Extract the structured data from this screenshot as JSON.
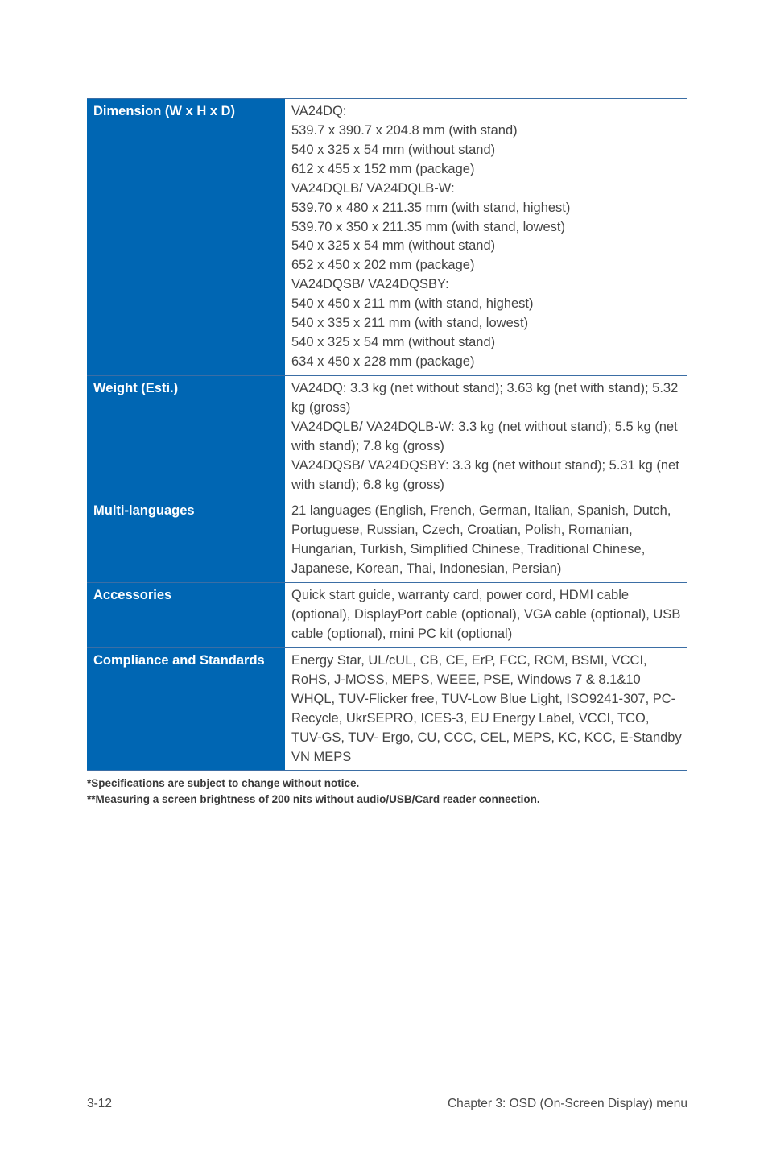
{
  "table": {
    "label_bg": "#0066b3",
    "label_color": "#ffffff",
    "value_color": "#444444",
    "border_color": "#3b6ea5",
    "rows": [
      {
        "label": "Dimension (W x H x D)",
        "value": "VA24DQ:\n539.7 x 390.7 x 204.8 mm (with stand)\n540 x 325 x 54 mm (without stand)\n612 x 455 x 152 mm (package)\nVA24DQLB/ VA24DQLB-W:\n539.70 x 480 x 211.35 mm (with stand, highest)\n539.70 x 350 x 211.35 mm (with stand, lowest)\n540 x 325 x 54 mm (without stand)\n652 x 450 x 202 mm (package)\nVA24DQSB/ VA24DQSBY:\n540 x 450 x 211 mm (with stand, highest)\n540 x 335 x 211 mm (with stand, lowest)\n540 x 325 x 54 mm (without stand)\n634 x 450 x 228 mm (package)"
      },
      {
        "label": "Weight (Esti.)",
        "value": "VA24DQ: 3.3 kg (net without stand); 3.63 kg (net with stand); 5.32 kg (gross)\nVA24DQLB/ VA24DQLB-W: 3.3 kg (net without stand); 5.5 kg (net with stand); 7.8 kg (gross)\nVA24DQSB/ VA24DQSBY: 3.3 kg (net without stand); 5.31 kg (net with stand); 6.8 kg (gross)"
      },
      {
        "label": "Multi-languages",
        "value": "21 languages (English, French, German, Italian, Spanish, Dutch, Portuguese, Russian, Czech, Croatian, Polish, Romanian, Hungarian, Turkish, Simplified Chinese, Traditional Chinese, Japanese, Korean, Thai, Indonesian, Persian)"
      },
      {
        "label": "Accessories",
        "value": "Quick start guide, warranty card, power cord, HDMI cable (optional), DisplayPort cable (optional), VGA cable (optional), USB cable (optional), mini PC kit (optional)"
      },
      {
        "label": "Compliance and Standards",
        "value": "Energy Star, UL/cUL, CB, CE, ErP, FCC, RCM, BSMI, VCCI, RoHS, J-MOSS, MEPS, WEEE, PSE, Windows 7 & 8.1&10 WHQL, TUV-Flicker free, TUV-Low Blue Light, ISO9241-307, PC-Recycle, UkrSEPRO, ICES-3, EU Energy Label, VCCI, TCO, TUV-GS, TUV- Ergo, CU, CCC, CEL, MEPS, KC, KCC, E-Standby VN MEPS"
      }
    ]
  },
  "footnotes": {
    "line1": "*Specifications are subject to change without notice.",
    "line2": "**Measuring a screen brightness of 200 nits without audio/USB/Card reader connection."
  },
  "footer": {
    "page_number": "3-12",
    "chapter": "Chapter 3: OSD (On-Screen Display) menu"
  }
}
